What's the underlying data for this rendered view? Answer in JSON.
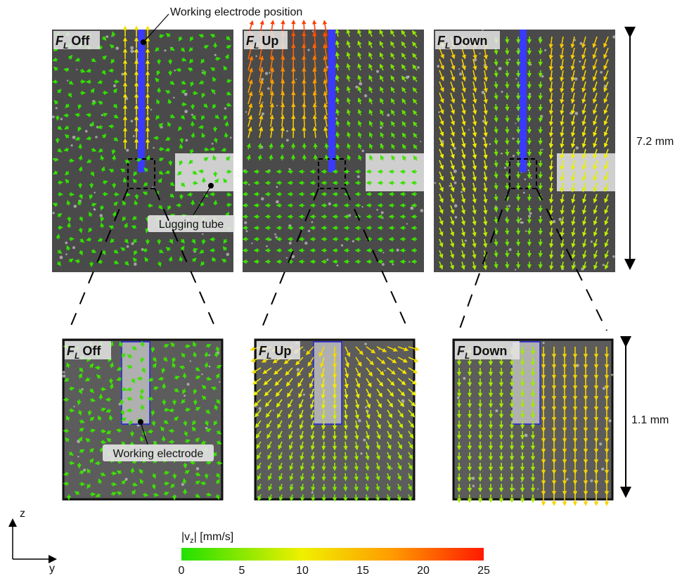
{
  "annotations": {
    "electrode_position": "Working electrode position",
    "lugging_tube": "Lugging tube",
    "working_electrode": "Working electrode"
  },
  "labels": {
    "force_symbol": "F",
    "force_subscript": "L"
  },
  "conditions": [
    "Off",
    "Up",
    "Down"
  ],
  "scale_bars": {
    "overview": "7.2 mm",
    "zoom": "1.1 mm"
  },
  "axes": {
    "vertical": "z",
    "horizontal": "y"
  },
  "colorbar": {
    "label_start": "|v",
    "label_subscript": "z",
    "label_end": "| [mm/s]",
    "range": [
      0,
      25
    ],
    "ticks": [
      0,
      5,
      10,
      15,
      20,
      25
    ]
  }
}
